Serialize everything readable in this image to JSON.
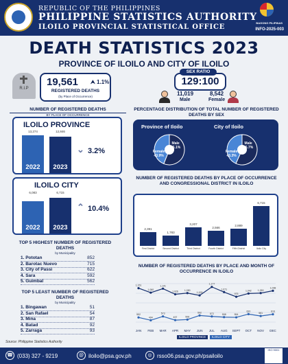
{
  "header": {
    "line1": "REPUBLIC OF THE PHILIPPINES",
    "line2": "PHILIPPINE STATISTICS AUTHORITY",
    "line3": "ILOILO PROVINCIAL STATISTICAL OFFICE",
    "logo_text": "BAGONG PILIPINAS",
    "info_code": "INFO-2025-003"
  },
  "title": "DEATH STATISTICS 2023",
  "subtitle": "PROVINCE OF ILOILO AND CITY OF ILOILO",
  "tomb_text": "R.I.P",
  "registered": {
    "count": "19,561",
    "change": "1.1%",
    "label": "REGISTERED DEATHS",
    "sub": "(by Place of Occurrence)"
  },
  "sex_ratio": {
    "label": "SEX RATIO",
    "value": "129:100",
    "male_count": "11,019",
    "male_label": "Male",
    "female_count": "8,542",
    "female_label": "Female"
  },
  "place_section": {
    "title": "NUMBER OF REGISTERED DEATHS",
    "sub": "BY PLACE OF OCCURRENCE"
  },
  "province": {
    "title": "ILOILO PROVINCE",
    "y2022": "2022",
    "y2023": "2023",
    "v2022": 13274,
    "v2022_label": "13,274",
    "v2023": 12846,
    "v2023_label": "12,846",
    "pct": "3.2%",
    "trend": "down"
  },
  "city": {
    "title": "ILOILO CITY",
    "y2022": "2022",
    "y2023": "2023",
    "v2022": 6083,
    "v2022_label": "6,083",
    "v2023": 6715,
    "v2023_label": "6,715",
    "pct": "10.4%",
    "trend": "up"
  },
  "top5": {
    "title": "TOP 5 HIGHEST NUMBER OF REGISTERED DEATHS",
    "sub": "by Municipality",
    "items": [
      {
        "name": "1. Pototan",
        "value": "852"
      },
      {
        "name": "2. Barotac Nuevo",
        "value": "715"
      },
      {
        "name": "3. City of Passi",
        "value": "622"
      },
      {
        "name": "4. Sara",
        "value": "592"
      },
      {
        "name": "5. Guimbal",
        "value": "562"
      }
    ]
  },
  "least5": {
    "title": "TOP 5 LEAST NUMBER OF REGISTERED DEATHS",
    "sub": "by Municipality",
    "items": [
      {
        "name": "1. Bingawan",
        "value": "51"
      },
      {
        "name": "2. San Rafael",
        "value": "54"
      },
      {
        "name": "3. Mina",
        "value": "87"
      },
      {
        "name": "4. Batad",
        "value": "92"
      },
      {
        "name": "5. Zarraga",
        "value": "93"
      }
    ]
  },
  "sex_section": {
    "title": "PERCENTAGE DISTRIBUTION OF TOTAL NUMBER OF REGISTERED DEATHS BY SEX"
  },
  "pies": [
    {
      "title": "Province of Iloilo",
      "male_label": "Male",
      "male_pct": "56.1%",
      "male": 56.1,
      "female_label": "Female",
      "female_pct": "43.9%",
      "female": 43.9
    },
    {
      "title": "City of Iloilo",
      "male_label": "Male",
      "male_pct": "56.7%",
      "male": 56.7,
      "female_label": "Female",
      "female_pct": "43.3%",
      "female": 43.3
    }
  ],
  "district_section": {
    "title": "NUMBER OF REGISTERED DEATHS BY PLACE OF OCCURRENCE AND CONGRESSIONAL DISTRICT IN ILOILO"
  },
  "districts": [
    {
      "name": "First District",
      "value": 2391,
      "label": "2,391"
    },
    {
      "name": "Second District",
      "value": 1783,
      "label": "1,783"
    },
    {
      "name": "Third District",
      "value": 3207,
      "label": "3,207"
    },
    {
      "name": "Fourth District",
      "value": 2566,
      "label": "2,566"
    },
    {
      "name": "Fifth District",
      "value": 2889,
      "label": "2,889"
    },
    {
      "name": "Iloilo City",
      "value": 6715,
      "label": "6,715"
    }
  ],
  "monthly_section": {
    "title": "NUMBER OF REGISTERED DEATHS BY PLACE AND MONTH OF OCCURRENCE IN ILOILO"
  },
  "chart_data": {
    "type": "line",
    "categories": [
      "JAN",
      "FEB",
      "MAR",
      "APR",
      "MAY",
      "JUN",
      "JUL",
      "AUG",
      "SEPT",
      "OCT",
      "NOV",
      "DEC"
    ],
    "series": [
      {
        "name": "ILOILO PROVINCE",
        "color": "#17306e",
        "values": [
          1151,
          1060,
          1141,
          1026,
          1050,
          1003,
          1177,
          1071,
          975,
          1042,
          1050,
          1098
        ]
      },
      {
        "name": "ILOILO CITY",
        "color": "#2d63b3",
        "values": [
          552,
          494,
          573,
          497,
          508,
          592,
          572,
          558,
          554,
          620,
          581,
          616
        ]
      }
    ]
  },
  "source": "Source: Philippine Statistics Authority",
  "footer": {
    "phone": "(033) 327 - 9219",
    "email": "iloilo@psa.gov.ph",
    "web": "rsso06.psa.gov.ph/psailoilo",
    "iso": "ISO 9001"
  }
}
